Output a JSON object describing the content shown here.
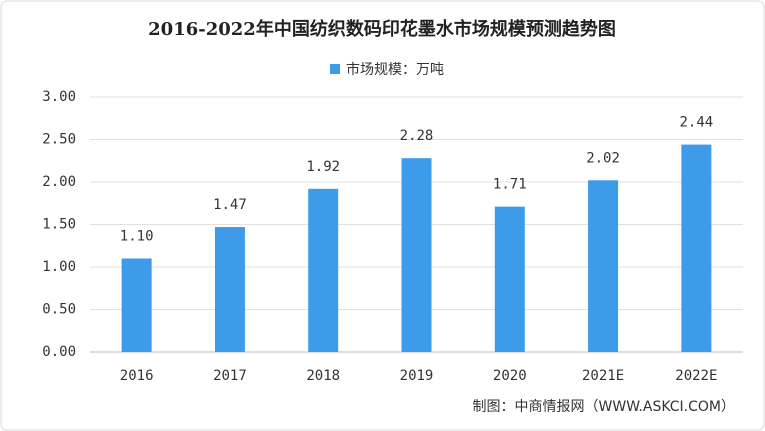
{
  "chart_data": {
    "type": "bar",
    "title": "2016-2022年中国纺织数码印花墨水市场规模预测趋势图",
    "categories": [
      "2016",
      "2017",
      "2018",
      "2019",
      "2020",
      "2021E",
      "2022E"
    ],
    "series": [
      {
        "name": "市场规模：万吨",
        "color": "#3d9be9",
        "values": [
          1.1,
          1.47,
          1.92,
          2.28,
          1.71,
          2.02,
          2.44
        ],
        "value_labels": [
          "1.10",
          "1.47",
          "1.92",
          "2.28",
          "1.71",
          "2.02",
          "2.44"
        ]
      }
    ],
    "ylim": [
      0,
      3
    ],
    "yticks": [
      {
        "value": 0,
        "label": "0.00"
      },
      {
        "value": 0.5,
        "label": "0.50"
      },
      {
        "value": 1,
        "label": "1.00"
      },
      {
        "value": 1.5,
        "label": "1.50"
      },
      {
        "value": 2,
        "label": "2.00"
      },
      {
        "value": 2.5,
        "label": "2.50"
      },
      {
        "value": 3,
        "label": "3.00"
      }
    ],
    "grid": true,
    "legend": "top",
    "source": "制图：中商情报网（WWW.ASKCI.COM）"
  }
}
